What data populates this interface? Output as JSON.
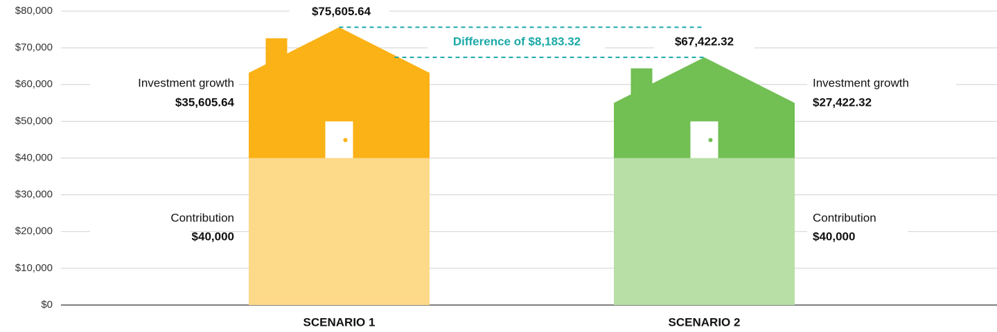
{
  "chart_data": {
    "type": "house-stack",
    "categories": [
      "SCENARIO 1",
      "SCENARIO 2"
    ],
    "series": [
      {
        "name": "Contribution",
        "color": [
          "#fdd98a",
          "#b8dfa6"
        ],
        "values": [
          40000,
          40000
        ],
        "value_labels": [
          "$40,000",
          "$40,000"
        ]
      },
      {
        "name": "Investment growth",
        "color": [
          "#fbb216",
          "#72bf54"
        ],
        "values": [
          35605.64,
          27422.32
        ],
        "value_labels": [
          "$35,605.64",
          "$27,422.32"
        ]
      }
    ],
    "totals": {
      "values": [
        75605.64,
        67422.32
      ],
      "value_labels": [
        "$75,605.64",
        "$67,422.32"
      ]
    },
    "difference": {
      "value": 8183.32,
      "label": "Difference of $8,183.32",
      "color": "#1aa8a8"
    },
    "ylim": [
      0,
      80000
    ],
    "yticks": [
      {
        "value": 0,
        "label": "$0"
      },
      {
        "value": 10000,
        "label": "$10,000"
      },
      {
        "value": 20000,
        "label": "$20,000"
      },
      {
        "value": 30000,
        "label": "$30,000"
      },
      {
        "value": 40000,
        "label": "$40,000"
      },
      {
        "value": 50000,
        "label": "$50,000"
      },
      {
        "value": 60000,
        "label": "$60,000"
      },
      {
        "value": 70000,
        "label": "$70,000"
      },
      {
        "value": 80000,
        "label": "$80,000"
      }
    ],
    "grid": true
  }
}
